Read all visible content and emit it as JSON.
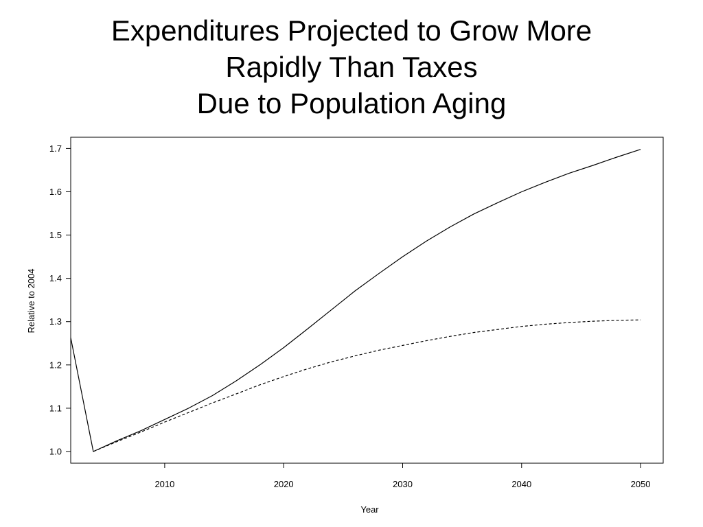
{
  "chart_data": {
    "type": "line",
    "title_lines": [
      "Expenditures Projected to Grow More",
      "Rapidly Than Taxes",
      "Due to Population Aging"
    ],
    "xlabel": "Year",
    "ylabel": "Relative to 2004",
    "xlim": [
      2002.1,
      2051.9
    ],
    "ylim": [
      0.973,
      1.726
    ],
    "xticks": [
      2010,
      2020,
      2030,
      2040,
      2050
    ],
    "yticks": [
      1.0,
      1.1,
      1.2,
      1.3,
      1.4,
      1.5,
      1.6,
      1.7
    ],
    "ytick_labels": [
      "1.0",
      "1.1",
      "1.2",
      "1.3",
      "1.4",
      "1.5",
      "1.6",
      "1.7"
    ],
    "grid": false,
    "series": [
      {
        "line_style": "solid",
        "points": [
          [
            2002.1,
            1.263
          ],
          [
            2004,
            1.0
          ],
          [
            2006,
            1.025
          ],
          [
            2008,
            1.048
          ],
          [
            2010,
            1.074
          ],
          [
            2012,
            1.1
          ],
          [
            2014,
            1.129
          ],
          [
            2016,
            1.163
          ],
          [
            2018,
            1.2
          ],
          [
            2020,
            1.24
          ],
          [
            2022,
            1.283
          ],
          [
            2024,
            1.327
          ],
          [
            2026,
            1.371
          ],
          [
            2028,
            1.411
          ],
          [
            2030,
            1.45
          ],
          [
            2032,
            1.486
          ],
          [
            2034,
            1.519
          ],
          [
            2036,
            1.549
          ],
          [
            2038,
            1.575
          ],
          [
            2040,
            1.6
          ],
          [
            2042,
            1.622
          ],
          [
            2044,
            1.643
          ],
          [
            2046,
            1.661
          ],
          [
            2048,
            1.68
          ],
          [
            2050,
            1.698
          ]
        ]
      },
      {
        "line_style": "dashed",
        "points": [
          [
            2004,
            1.0
          ],
          [
            2006,
            1.023
          ],
          [
            2008,
            1.045
          ],
          [
            2010,
            1.068
          ],
          [
            2012,
            1.09
          ],
          [
            2014,
            1.112
          ],
          [
            2016,
            1.133
          ],
          [
            2018,
            1.154
          ],
          [
            2020,
            1.173
          ],
          [
            2022,
            1.191
          ],
          [
            2024,
            1.207
          ],
          [
            2026,
            1.221
          ],
          [
            2028,
            1.234
          ],
          [
            2030,
            1.245
          ],
          [
            2032,
            1.256
          ],
          [
            2034,
            1.266
          ],
          [
            2036,
            1.275
          ],
          [
            2038,
            1.282
          ],
          [
            2040,
            1.289
          ],
          [
            2042,
            1.294
          ],
          [
            2044,
            1.298
          ],
          [
            2046,
            1.301
          ],
          [
            2048,
            1.303
          ],
          [
            2050,
            1.304
          ]
        ]
      }
    ]
  }
}
